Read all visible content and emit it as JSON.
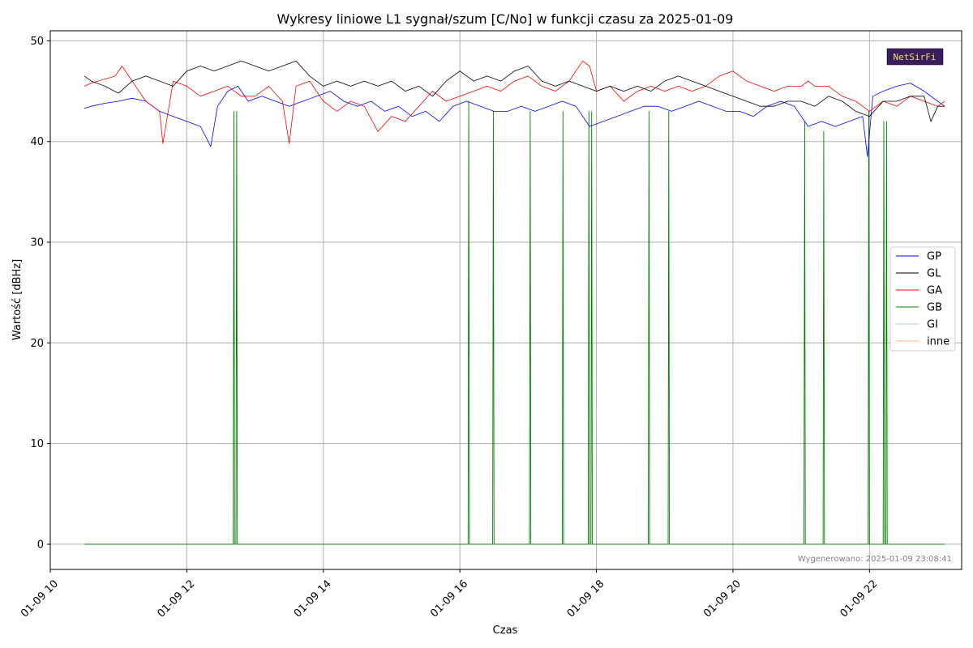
{
  "chart_data": {
    "type": "line",
    "title": "Wykresy liniowe L1 sygnał/szum [C/No] w funkcji czasu za 2025-01-09",
    "xlabel": "Czas",
    "ylabel": "Wartość [dBHz]",
    "xlim": [
      10.0,
      23.35
    ],
    "ylim": [
      -2.5,
      51.0
    ],
    "x_unit": "hour of day",
    "x_ticks": [
      {
        "value": 10,
        "label": "01-09 10"
      },
      {
        "value": 12,
        "label": "01-09 12"
      },
      {
        "value": 14,
        "label": "01-09 14"
      },
      {
        "value": 16,
        "label": "01-09 16"
      },
      {
        "value": 18,
        "label": "01-09 18"
      },
      {
        "value": 20,
        "label": "01-09 20"
      },
      {
        "value": 22,
        "label": "01-09 22"
      }
    ],
    "y_ticks": [
      {
        "value": 0,
        "label": "0"
      },
      {
        "value": 10,
        "label": "10"
      },
      {
        "value": 20,
        "label": "20"
      },
      {
        "value": 30,
        "label": "30"
      },
      {
        "value": 40,
        "label": "40"
      },
      {
        "value": 50,
        "label": "50"
      }
    ],
    "grid": true,
    "legend_position": "center-right",
    "series": [
      {
        "name": "GP",
        "color": "#0000ff",
        "x": [
          10.5,
          10.6,
          10.8,
          11.0,
          11.2,
          11.4,
          11.6,
          11.8,
          12.0,
          12.2,
          12.35,
          12.45,
          12.6,
          12.75,
          12.9,
          13.1,
          13.3,
          13.5,
          13.7,
          13.9,
          14.1,
          14.3,
          14.5,
          14.7,
          14.9,
          15.1,
          15.3,
          15.5,
          15.7,
          15.9,
          16.1,
          16.3,
          16.5,
          16.7,
          16.9,
          17.1,
          17.3,
          17.5,
          17.7,
          17.9,
          18.1,
          18.3,
          18.5,
          18.7,
          18.9,
          19.1,
          19.3,
          19.5,
          19.7,
          19.9,
          20.1,
          20.3,
          20.5,
          20.7,
          20.9,
          21.1,
          21.3,
          21.5,
          21.7,
          21.9,
          21.97,
          22.05,
          22.2,
          22.4,
          22.6,
          22.8,
          23.0,
          23.1
        ],
        "values": [
          43.3,
          43.5,
          43.8,
          44.0,
          44.3,
          44.0,
          43.0,
          42.5,
          42.0,
          41.5,
          39.5,
          43.5,
          45.0,
          45.5,
          44.0,
          44.5,
          44.0,
          43.5,
          44.0,
          44.5,
          45.0,
          44.0,
          43.5,
          44.0,
          43.0,
          43.5,
          42.5,
          43.0,
          42.0,
          43.5,
          44.0,
          43.5,
          43.0,
          43.0,
          43.5,
          43.0,
          43.5,
          44.0,
          43.5,
          41.5,
          42.0,
          42.5,
          43.0,
          43.5,
          43.5,
          43.0,
          43.5,
          44.0,
          43.5,
          43.0,
          43.0,
          42.5,
          43.5,
          44.0,
          43.5,
          41.5,
          42.0,
          41.5,
          42.0,
          42.5,
          38.5,
          44.5,
          45.0,
          45.5,
          45.8,
          45.0,
          44.0,
          43.5
        ]
      },
      {
        "name": "GL",
        "color": "#000000",
        "x": [
          10.5,
          10.6,
          10.8,
          11.0,
          11.2,
          11.4,
          11.6,
          11.8,
          12.0,
          12.2,
          12.4,
          12.6,
          12.8,
          13.0,
          13.2,
          13.4,
          13.6,
          13.8,
          14.0,
          14.2,
          14.4,
          14.6,
          14.8,
          15.0,
          15.2,
          15.4,
          15.6,
          15.8,
          16.0,
          16.2,
          16.4,
          16.6,
          16.8,
          17.0,
          17.2,
          17.4,
          17.6,
          17.8,
          18.0,
          18.2,
          18.4,
          18.6,
          18.8,
          19.0,
          19.2,
          19.4,
          19.6,
          19.8,
          20.0,
          20.2,
          20.4,
          20.6,
          20.8,
          21.0,
          21.2,
          21.4,
          21.6,
          21.8,
          22.0,
          22.2,
          22.4,
          22.6,
          22.8,
          22.9,
          23.0,
          23.1
        ],
        "values": [
          46.5,
          46.0,
          45.5,
          44.8,
          46.0,
          46.5,
          46.0,
          45.5,
          47.0,
          47.5,
          47.0,
          47.5,
          48.0,
          47.5,
          47.0,
          47.5,
          48.0,
          46.5,
          45.5,
          46.0,
          45.5,
          46.0,
          45.5,
          46.0,
          45.0,
          45.5,
          44.5,
          46.0,
          47.0,
          46.0,
          46.5,
          46.0,
          47.0,
          47.5,
          46.0,
          45.5,
          46.0,
          45.5,
          45.0,
          45.5,
          45.0,
          45.5,
          45.0,
          46.0,
          46.5,
          46.0,
          45.5,
          45.0,
          44.5,
          44.0,
          43.5,
          43.5,
          44.0,
          44.0,
          43.5,
          44.5,
          44.0,
          43.0,
          42.5,
          44.0,
          44.0,
          44.5,
          44.5,
          42.0,
          43.5,
          43.5
        ]
      },
      {
        "name": "GA",
        "color": "#ff0000",
        "x": [
          10.5,
          10.6,
          10.8,
          10.95,
          11.05,
          11.2,
          11.4,
          11.6,
          11.65,
          11.8,
          12.0,
          12.2,
          12.4,
          12.6,
          12.8,
          13.0,
          13.2,
          13.4,
          13.5,
          13.6,
          13.8,
          14.0,
          14.2,
          14.4,
          14.6,
          14.8,
          15.0,
          15.2,
          15.4,
          15.6,
          15.8,
          16.0,
          16.2,
          16.4,
          16.6,
          16.8,
          17.0,
          17.2,
          17.4,
          17.6,
          17.8,
          17.9,
          18.0,
          18.2,
          18.4,
          18.6,
          18.8,
          19.0,
          19.2,
          19.4,
          19.6,
          19.8,
          20.0,
          20.2,
          20.4,
          20.6,
          20.8,
          21.0,
          21.1,
          21.2,
          21.4,
          21.6,
          21.8,
          22.0,
          22.2,
          22.4,
          22.6,
          22.8,
          23.0,
          23.1
        ],
        "values": [
          45.5,
          45.8,
          46.2,
          46.5,
          47.5,
          46.0,
          44.0,
          43.0,
          39.8,
          46.0,
          45.5,
          44.5,
          45.0,
          45.5,
          44.5,
          44.5,
          45.5,
          44.0,
          39.8,
          45.5,
          46.0,
          44.0,
          43.0,
          44.0,
          43.5,
          41.0,
          42.5,
          42.0,
          43.5,
          45.0,
          44.0,
          44.5,
          45.0,
          45.5,
          45.0,
          46.0,
          46.5,
          45.5,
          45.0,
          46.0,
          48.0,
          47.5,
          45.0,
          45.5,
          44.0,
          45.0,
          45.5,
          45.0,
          45.5,
          45.0,
          45.5,
          46.5,
          47.0,
          46.0,
          45.5,
          45.0,
          45.5,
          45.5,
          46.0,
          45.5,
          45.5,
          44.5,
          44.0,
          43.0,
          44.0,
          43.5,
          44.5,
          44.0,
          43.5,
          44.0
        ]
      },
      {
        "name": "GB",
        "color": "#008000",
        "x": [
          10.5,
          12.68,
          12.69,
          12.7,
          12.72,
          12.73,
          12.74,
          16.12,
          16.13,
          16.14,
          16.48,
          16.49,
          16.5,
          17.02,
          17.03,
          17.04,
          17.5,
          17.51,
          17.52,
          17.88,
          17.89,
          17.9,
          17.92,
          17.93,
          17.94,
          18.76,
          18.77,
          18.78,
          19.05,
          19.06,
          19.07,
          21.04,
          21.05,
          21.06,
          21.32,
          21.33,
          21.34,
          21.98,
          21.99,
          22.0,
          22.2,
          22.21,
          22.22,
          22.24,
          22.25,
          22.26,
          23.1
        ],
        "values": [
          0,
          0,
          43,
          0,
          0,
          43,
          0,
          0,
          44,
          0,
          0,
          43,
          0,
          0,
          43,
          0,
          0,
          43,
          0,
          0,
          43,
          0,
          0,
          43,
          0,
          0,
          43,
          0,
          0,
          43,
          0,
          0,
          42,
          0,
          0,
          41,
          0,
          0,
          43,
          0,
          0,
          42,
          0,
          0,
          42,
          0,
          0
        ]
      },
      {
        "name": "GI",
        "color": "#aec7e8",
        "x": [
          10.5,
          23.1
        ],
        "values": [
          0,
          0
        ]
      },
      {
        "name": "inne",
        "color": "#ffbb78",
        "x": [
          10.5,
          23.1
        ],
        "values": [
          0,
          0
        ]
      }
    ]
  },
  "footer": {
    "generated": "Wygenerowano: 2025-01-09 23:08:41"
  },
  "logo": {
    "text": "NetSirFi"
  }
}
